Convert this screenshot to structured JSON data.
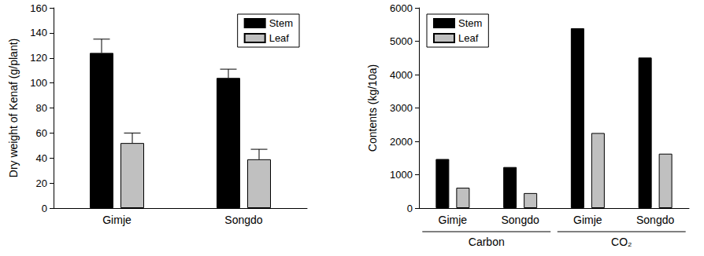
{
  "chart_data": [
    {
      "type": "bar",
      "ylabel": "Dry weight of Kenaf (g/plant)",
      "categories": [
        "Gimje",
        "Songdo"
      ],
      "series": [
        {
          "name": "Stem",
          "color": "#000000",
          "values": [
            124,
            104
          ],
          "errors": [
            11,
            7
          ]
        },
        {
          "name": "Leaf",
          "color": "#c0c0c0",
          "values": [
            52,
            39
          ],
          "errors": [
            8,
            8
          ]
        }
      ],
      "ylim": [
        0,
        160
      ],
      "yticks": [
        0,
        20,
        40,
        60,
        80,
        100,
        120,
        140,
        160
      ],
      "legend": "upper right"
    },
    {
      "type": "bar",
      "ylabel": "Contents (kg/10a)",
      "groups": [
        {
          "label": "Carbon",
          "categories": [
            "Gimje",
            "Songdo"
          ]
        },
        {
          "label": "CO₂",
          "categories": [
            "Gimje",
            "Songdo"
          ]
        }
      ],
      "series": [
        {
          "name": "Stem",
          "color": "#000000",
          "values": [
            1470,
            1230,
            5390,
            4510
          ]
        },
        {
          "name": "Leaf",
          "color": "#c0c0c0",
          "values": [
            610,
            450,
            2250,
            1630
          ]
        }
      ],
      "ylim": [
        0,
        6000
      ],
      "yticks": [
        0,
        1000,
        2000,
        3000,
        4000,
        5000,
        6000
      ],
      "legend": "upper left"
    }
  ]
}
